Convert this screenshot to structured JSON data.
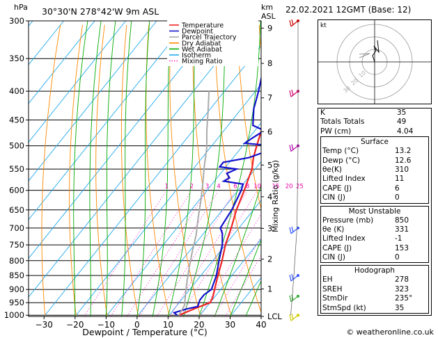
{
  "header": {
    "location": "30°30'N  278°42'W  9m  ASL",
    "datetime": "22.02.2021  12GMT  (Base: 12)",
    "hpa_label": "hPa",
    "km_label": "km",
    "asl_label": "ASL"
  },
  "chart_data": {
    "type": "line",
    "title": "",
    "xlabel": "Dewpoint / Temperature (°C)",
    "ylabel": "Mixing Ratio (g/kg)",
    "x_ticks": [
      -30,
      -20,
      -10,
      0,
      10,
      20,
      30,
      40
    ],
    "xlim": [
      -35,
      40
    ],
    "pressure_levels": [
      300,
      350,
      400,
      450,
      500,
      550,
      600,
      650,
      700,
      750,
      800,
      850,
      900,
      950,
      1000
    ],
    "ylim": [
      1005,
      300
    ],
    "y_scale": "log",
    "km_ticks": [
      {
        "label": "9",
        "p": 309
      },
      {
        "label": "8",
        "p": 357
      },
      {
        "label": "7",
        "p": 411
      },
      {
        "label": "6",
        "p": 472
      },
      {
        "label": "5",
        "p": 541
      },
      {
        "label": "4",
        "p": 616
      },
      {
        "label": "3",
        "p": 701
      },
      {
        "label": "2",
        "p": 795
      },
      {
        "label": "1",
        "p": 898
      },
      {
        "label": "LCL",
        "p": 1005
      }
    ],
    "mixing_ratio_labels": [
      "1",
      "2",
      "3",
      "4",
      "6",
      "8",
      "10",
      "15",
      "20",
      "25"
    ],
    "mixing_ratio_values": [
      1,
      2,
      3,
      4,
      6,
      8,
      10,
      15,
      20,
      25
    ],
    "legend": [
      "Temperature",
      "Dewpoint",
      "Parcel Trajectory",
      "Dry Adiabat",
      "Wet Adiabat",
      "Isotherm",
      "Mixing Ratio"
    ],
    "legend_position": "top-right",
    "series": [
      {
        "name": "Temperature",
        "color": "#ee2222",
        "points": [
          [
            13.2,
            1000
          ],
          [
            17,
            970
          ],
          [
            20,
            950
          ],
          [
            19.5,
            930
          ],
          [
            18,
            900
          ],
          [
            15.5,
            850
          ],
          [
            13,
            800
          ],
          [
            10,
            750
          ],
          [
            7.5,
            700
          ],
          [
            4.5,
            650
          ],
          [
            2,
            600
          ],
          [
            0.5,
            575
          ],
          [
            -1,
            550
          ],
          [
            -3.5,
            525
          ],
          [
            -5.5,
            500
          ],
          [
            -7.5,
            475
          ],
          [
            -9.5,
            450
          ],
          [
            -11.5,
            430
          ],
          [
            -13.5,
            400
          ],
          [
            -17,
            375
          ],
          [
            -20,
            350
          ],
          [
            -24,
            325
          ],
          [
            -27,
            300
          ]
        ]
      },
      {
        "name": "Dewpoint",
        "color": "#1111cc",
        "points": [
          [
            12.6,
            1000
          ],
          [
            11,
            990
          ],
          [
            14,
            975
          ],
          [
            17,
            965
          ],
          [
            16,
            940
          ],
          [
            16,
            920
          ],
          [
            17,
            900
          ],
          [
            15,
            850
          ],
          [
            12,
            800
          ],
          [
            9,
            750
          ],
          [
            6,
            715
          ],
          [
            4,
            700
          ],
          [
            3,
            650
          ],
          [
            1,
            600
          ],
          [
            0,
            585
          ],
          [
            -7,
            578
          ],
          [
            -6,
            570
          ],
          [
            -8,
            560
          ],
          [
            -6,
            550
          ],
          [
            -12,
            545
          ],
          [
            -12,
            535
          ],
          [
            -5,
            525
          ],
          [
            -2,
            515
          ],
          [
            -4,
            498
          ],
          [
            -10,
            495
          ],
          [
            -9,
            485
          ],
          [
            -7,
            470
          ],
          [
            -12,
            460
          ],
          [
            -16,
            430
          ],
          [
            -19,
            400
          ],
          [
            -22,
            375
          ],
          [
            -24,
            350
          ],
          [
            -27,
            325
          ],
          [
            -30,
            300
          ]
        ]
      },
      {
        "name": "Parcel Trajectory",
        "color": "#aaaaaa",
        "points": [
          [
            13.2,
            1000
          ],
          [
            12.4,
            960
          ],
          [
            10,
            920
          ],
          [
            7,
            870
          ],
          [
            4,
            820
          ],
          [
            1,
            770
          ],
          [
            -2,
            720
          ],
          [
            -5.5,
            675
          ],
          [
            -9,
            630
          ],
          [
            -13,
            585
          ],
          [
            -17,
            545
          ],
          [
            -21,
            505
          ],
          [
            -25.5,
            470
          ],
          [
            -30,
            435
          ],
          [
            -35,
            400
          ]
        ]
      }
    ],
    "wind_barbs": [
      {
        "p": 300,
        "color": "#cc0000"
      },
      {
        "p": 400,
        "color": "#cc0066"
      },
      {
        "p": 500,
        "color": "#aa00aa"
      },
      {
        "p": 700,
        "color": "#3355ff"
      },
      {
        "p": 850,
        "color": "#3355ff"
      },
      {
        "p": 925,
        "color": "#33aa33"
      },
      {
        "p": 1000,
        "color": "#cccc00"
      }
    ]
  },
  "hodograph": {
    "label": "kt",
    "ring_labels": [
      "10",
      "20",
      "30"
    ]
  },
  "indices": {
    "k_label": "K",
    "k_value": "35",
    "tt_label": "Totals Totals",
    "tt_value": "49",
    "pw_label": "PW (cm)",
    "pw_value": "4.04",
    "surface": {
      "title": "Surface",
      "temp_label": "Temp (°C)",
      "temp_value": "13.2",
      "dewp_label": "Dewp (°C)",
      "dewp_value": "12.6",
      "theta_label": "θe(K)",
      "theta_value": "310",
      "li_label": "Lifted Index",
      "li_value": "11",
      "cape_label": "CAPE (J)",
      "cape_value": "6",
      "cin_label": "CIN (J)",
      "cin_value": "0"
    },
    "most_unstable": {
      "title": "Most Unstable",
      "pres_label": "Pressure (mb)",
      "pres_value": "850",
      "theta_label": "θe (K)",
      "theta_value": "331",
      "li_label": "Lifted Index",
      "li_value": "-1",
      "cape_label": "CAPE (J)",
      "cape_value": "153",
      "cin_label": "CIN (J)",
      "cin_value": "0"
    },
    "hodo": {
      "title": "Hodograph",
      "eh_label": "EH",
      "eh_value": "278",
      "sreh_label": "SREH",
      "sreh_value": "323",
      "dir_label": "StmDir",
      "dir_value": "235°",
      "spd_label": "StmSpd (kt)",
      "spd_value": "35"
    }
  },
  "credit": "© weatheronline.co.uk"
}
